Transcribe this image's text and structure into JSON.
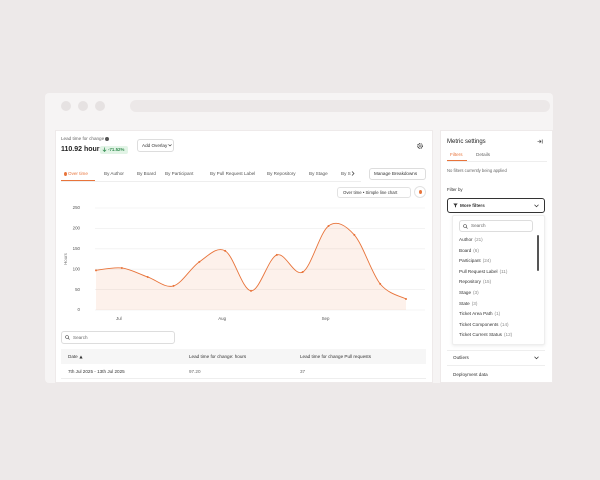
{
  "header": {
    "metric": "Lead time for change",
    "value": "110.92 hours",
    "change": "-71.52%",
    "overlay_button": "Add Overlay"
  },
  "tabs": [
    "Over time",
    "By Author",
    "By Board",
    "By Participant",
    "By Pull Request Label",
    "By Repository",
    "By Stage",
    "By S"
  ],
  "manage_button": "Manage Breakdowns",
  "chart_type_button": "Over time • Simple line chart",
  "chart_data": {
    "type": "line",
    "y_label": "Hours",
    "categories": [
      null,
      "Jul",
      null,
      null,
      null,
      "Aug",
      null,
      null,
      null,
      "Sep",
      null,
      null,
      null
    ],
    "values": [
      97.2,
      103,
      81,
      59,
      118,
      145,
      47,
      135,
      93,
      206,
      184,
      64,
      27
    ],
    "color": "#e8743b",
    "ylim": [
      0,
      250
    ],
    "yticks": [
      0,
      50,
      100,
      150,
      200,
      250
    ],
    "grid": true
  },
  "search_placeholder": "Search",
  "table": {
    "columns": [
      "Date",
      "Lead time for change: hours",
      "Lead time for change Pull requests"
    ],
    "rows": [
      [
        "7th Jul 2025 - 13th Jul 2025",
        "97.20",
        "37"
      ]
    ]
  },
  "sidebar": {
    "title": "Metric settings",
    "tabs": [
      "Filters",
      "Details"
    ],
    "status": "No filters currently being applied",
    "filter_label": "Filter by",
    "dropdown": "More filters",
    "search_placeholder": "Search",
    "filters": [
      {
        "name": "Author",
        "count": "(21)"
      },
      {
        "name": "Board",
        "count": "(6)"
      },
      {
        "name": "Participant",
        "count": "(24)"
      },
      {
        "name": "Pull Request Label",
        "count": "(11)"
      },
      {
        "name": "Repository",
        "count": "(15)"
      },
      {
        "name": "Stage",
        "count": "(3)"
      },
      {
        "name": "State",
        "count": "(3)"
      },
      {
        "name": "Ticket Area Path",
        "count": "(1)"
      },
      {
        "name": "Ticket Components",
        "count": "(14)"
      },
      {
        "name": "Ticket Current Status",
        "count": "(12)"
      }
    ],
    "sections": [
      "Outliers",
      "Deployment data"
    ]
  }
}
